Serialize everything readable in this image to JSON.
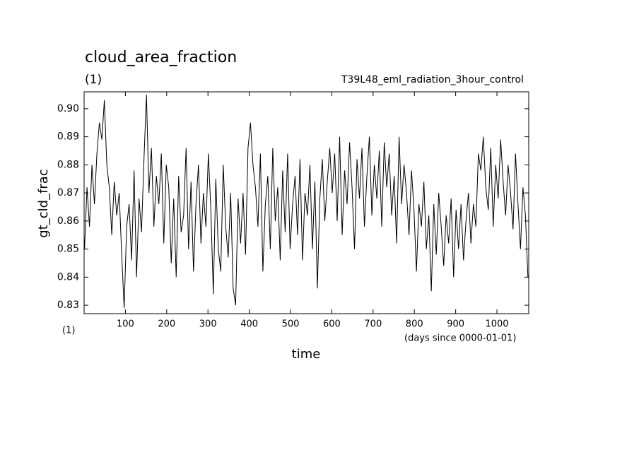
{
  "chart_data": {
    "type": "line",
    "title": "cloud_area_fraction",
    "subtitle": "(1)",
    "experiment": "T39L48_eml_radiation_3hour_control",
    "y_label": "gt_cld_frac",
    "x_label": "time",
    "x_units_left": "(1)",
    "x_units": "(days since 0000-01-01)",
    "color": "#000000",
    "xlim": [
      0,
      1077
    ],
    "ylim": [
      0.827,
      0.906
    ],
    "xticks": [
      100,
      200,
      300,
      400,
      500,
      600,
      700,
      800,
      900,
      1000
    ],
    "yticks": [
      0.83,
      0.84,
      0.85,
      0.86,
      0.87,
      0.88,
      0.89,
      {
        "value": 0.9,
        "label": "0.90"
      }
    ],
    "x": [
      1,
      7,
      13,
      19,
      25,
      31,
      37,
      43,
      49,
      55,
      61,
      67,
      73,
      79,
      85,
      91,
      97,
      103,
      109,
      115,
      121,
      127,
      133,
      139,
      145,
      151,
      157,
      163,
      169,
      175,
      181,
      187,
      193,
      199,
      205,
      211,
      217,
      223,
      229,
      235,
      241,
      247,
      253,
      259,
      265,
      271,
      277,
      283,
      289,
      295,
      301,
      307,
      313,
      319,
      325,
      331,
      337,
      343,
      349,
      355,
      361,
      367,
      373,
      379,
      385,
      391,
      397,
      403,
      409,
      415,
      421,
      427,
      433,
      439,
      445,
      451,
      457,
      463,
      469,
      475,
      481,
      487,
      493,
      499,
      505,
      511,
      517,
      523,
      529,
      535,
      541,
      547,
      553,
      559,
      565,
      571,
      577,
      583,
      589,
      595,
      601,
      607,
      613,
      619,
      625,
      631,
      637,
      643,
      649,
      655,
      661,
      667,
      673,
      679,
      685,
      691,
      697,
      703,
      709,
      715,
      721,
      727,
      733,
      739,
      745,
      751,
      757,
      763,
      769,
      775,
      781,
      787,
      793,
      799,
      805,
      811,
      817,
      823,
      829,
      835,
      841,
      847,
      853,
      859,
      865,
      871,
      877,
      883,
      889,
      895,
      901,
      907,
      913,
      919,
      925,
      931,
      937,
      943,
      949,
      955,
      961,
      967,
      973,
      979,
      985,
      991,
      997,
      1003,
      1009,
      1015,
      1021,
      1027,
      1033,
      1039,
      1045,
      1051,
      1057,
      1063,
      1069,
      1075
    ],
    "values": [
      0.85,
      0.872,
      0.858,
      0.88,
      0.866,
      0.884,
      0.895,
      0.889,
      0.903,
      0.88,
      0.872,
      0.855,
      0.874,
      0.862,
      0.87,
      0.848,
      0.829,
      0.858,
      0.866,
      0.846,
      0.878,
      0.84,
      0.868,
      0.856,
      0.882,
      0.905,
      0.87,
      0.886,
      0.858,
      0.876,
      0.866,
      0.884,
      0.852,
      0.88,
      0.872,
      0.845,
      0.868,
      0.84,
      0.876,
      0.856,
      0.862,
      0.886,
      0.85,
      0.874,
      0.842,
      0.866,
      0.88,
      0.852,
      0.87,
      0.858,
      0.884,
      0.864,
      0.834,
      0.875,
      0.85,
      0.842,
      0.88,
      0.858,
      0.847,
      0.87,
      0.836,
      0.83,
      0.868,
      0.852,
      0.87,
      0.848,
      0.886,
      0.895,
      0.88,
      0.872,
      0.858,
      0.884,
      0.842,
      0.866,
      0.876,
      0.85,
      0.886,
      0.86,
      0.872,
      0.846,
      0.878,
      0.856,
      0.884,
      0.85,
      0.866,
      0.876,
      0.855,
      0.882,
      0.846,
      0.87,
      0.862,
      0.88,
      0.85,
      0.874,
      0.836,
      0.868,
      0.882,
      0.86,
      0.874,
      0.886,
      0.87,
      0.884,
      0.86,
      0.89,
      0.855,
      0.878,
      0.866,
      0.888,
      0.872,
      0.85,
      0.882,
      0.868,
      0.886,
      0.858,
      0.876,
      0.89,
      0.862,
      0.88,
      0.868,
      0.885,
      0.858,
      0.888,
      0.872,
      0.884,
      0.862,
      0.876,
      0.852,
      0.89,
      0.866,
      0.88,
      0.87,
      0.855,
      0.878,
      0.864,
      0.842,
      0.866,
      0.858,
      0.874,
      0.85,
      0.862,
      0.835,
      0.866,
      0.848,
      0.87,
      0.858,
      0.844,
      0.862,
      0.852,
      0.868,
      0.84,
      0.864,
      0.85,
      0.866,
      0.846,
      0.86,
      0.87,
      0.852,
      0.866,
      0.858,
      0.884,
      0.878,
      0.89,
      0.872,
      0.864,
      0.886,
      0.858,
      0.88,
      0.868,
      0.889,
      0.874,
      0.862,
      0.88,
      0.87,
      0.857,
      0.884,
      0.866,
      0.85,
      0.872,
      0.862,
      0.84
    ]
  }
}
